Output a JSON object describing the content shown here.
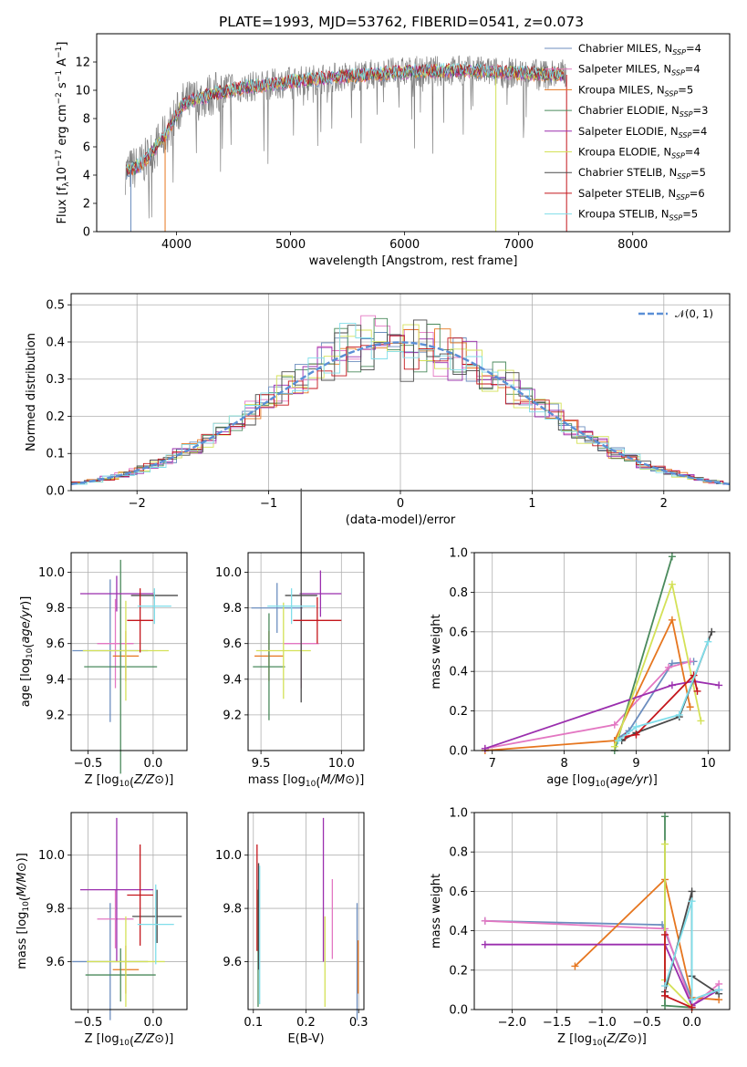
{
  "title": "PLATE=1993, MJD=53762, FIBERID=0541, z=0.073",
  "colors": {
    "chabrier_miles": "#6c8ebf",
    "salpeter_miles": "#e377c2",
    "kroupa_miles": "#e6761f",
    "chabrier_elodie": "#4a8a5c",
    "salpeter_elodie": "#9b2fae",
    "kroupa_elodie": "#d4e157",
    "chabrier_stelib": "#4a4a4a",
    "salpeter_stelib": "#c4161c",
    "kroupa_stelib": "#80deea",
    "data": "#808080",
    "normal": "#5b8fd6"
  },
  "chart_data": [
    {
      "id": "spectrum",
      "type": "line",
      "xlabel": "wavelength [Angstrom, rest frame]",
      "ylabel": "Flux [f_λ10^-17 erg cm^-2 s^-1 A^-1]",
      "xlim": [
        3300,
        8850
      ],
      "ylim": [
        0,
        14
      ],
      "xticks": [
        "4000",
        "5000",
        "6000",
        "7000",
        "8000"
      ],
      "yticks": [
        "0",
        "2",
        "4",
        "6",
        "8",
        "10",
        "12"
      ],
      "legend": [
        {
          "name": "Chabrier MILES, N_SSP=4",
          "base": "Chabrier MILES, N",
          "sub": "SSP",
          "tail": "=4"
        },
        {
          "name": "Salpeter MILES, N_SSP=4",
          "base": "Salpeter MILES, N",
          "sub": "SSP",
          "tail": "=4"
        },
        {
          "name": "Kroupa MILES, N_SSP=5",
          "base": "Kroupa MILES, N",
          "sub": "SSP",
          "tail": "=5"
        },
        {
          "name": "Chabrier ELODIE, N_SSP=3",
          "base": "Chabrier ELODIE, N",
          "sub": "SSP",
          "tail": "=3"
        },
        {
          "name": "Salpeter ELODIE, N_SSP=4",
          "base": "Salpeter ELODIE, N",
          "sub": "SSP",
          "tail": "=4"
        },
        {
          "name": "Kroupa ELODIE, N_SSP=4",
          "base": "Kroupa ELODIE, N",
          "sub": "SSP",
          "tail": "=4"
        },
        {
          "name": "Chabrier STELIB, N_SSP=5",
          "base": "Chabrier STELIB, N",
          "sub": "SSP",
          "tail": "=5"
        },
        {
          "name": "Salpeter STELIB, N_SSP=6",
          "base": "Salpeter STELIB, N",
          "sub": "SSP",
          "tail": "=6"
        },
        {
          "name": "Kroupa STELIB, N_SSP=5",
          "base": "Kroupa STELIB, N",
          "sub": "SSP",
          "tail": "=5"
        }
      ],
      "continuum": {
        "x": [
          3550,
          3700,
          3900,
          4050,
          4300,
          4600,
          5000,
          5500,
          6000,
          6500,
          7000,
          7400
        ],
        "y": [
          4.2,
          4.8,
          6.8,
          9.0,
          9.7,
          10.2,
          10.6,
          11.0,
          11.3,
          11.4,
          11.2,
          11.1
        ]
      }
    },
    {
      "id": "residuals",
      "type": "histogram",
      "xlabel": "(data-model)/error",
      "ylabel": "Normed distribution",
      "xlim": [
        -2.5,
        2.5
      ],
      "ylim": [
        0,
        0.53
      ],
      "xticks": [
        "−2",
        "−1",
        "0",
        "1",
        "2"
      ],
      "yticks": [
        "0.0",
        "0.1",
        "0.2",
        "0.3",
        "0.4",
        "0.5"
      ],
      "legend": "𝒩(0, 1)"
    },
    {
      "id": "age-vs-z",
      "type": "scatter",
      "xlabel": "Z [log10(Z/Z⊙)]",
      "ylabel": "age  [log10(age/yr)]",
      "xlim": [
        -0.63,
        0.26
      ],
      "ylim": [
        9.0,
        10.11
      ],
      "xticks": [
        "−0.5",
        "0.0"
      ],
      "yticks": [
        "9.2",
        "9.4",
        "9.6",
        "9.8",
        "10.0"
      ],
      "points": [
        {
          "model": "chabrier_miles",
          "x": -0.33,
          "y": 9.56,
          "xerr": 0.29,
          "yerr": 0.4
        },
        {
          "model": "salpeter_miles",
          "x": -0.29,
          "y": 9.6,
          "xerr": 0.14,
          "yerr": 0.25
        },
        {
          "model": "kroupa_miles",
          "x": -0.21,
          "y": 9.53,
          "xerr": 0.1,
          "yerr": 0.14
        },
        {
          "model": "chabrier_elodie",
          "x": -0.25,
          "y": 9.47,
          "xerr": 0.28,
          "yerr": 0.6
        },
        {
          "model": "salpeter_elodie",
          "x": -0.28,
          "y": 9.88,
          "xerr": 0.28,
          "yerr": 0.1
        },
        {
          "model": "kroupa_elodie",
          "x": -0.21,
          "y": 9.56,
          "xerr": 0.33,
          "yerr": 0.28
        },
        {
          "model": "chabrier_stelib",
          "x": 0.01,
          "y": 9.87,
          "xerr": 0.18,
          "yerr": 0.02
        },
        {
          "model": "salpeter_stelib",
          "x": -0.1,
          "y": 9.73,
          "xerr": 0.1,
          "yerr": 0.18
        },
        {
          "model": "kroupa_stelib",
          "x": 0.01,
          "y": 9.81,
          "xerr": 0.13,
          "yerr": 0.1
        }
      ]
    },
    {
      "id": "age-vs-mass",
      "type": "scatter",
      "xlabel": "mass [log10(M/M⊙)]",
      "ylabel": "",
      "xlim": [
        9.42,
        10.14
      ],
      "ylim": [
        9.0,
        10.11
      ],
      "xticks": [
        "9.5",
        "10.0"
      ],
      "yticks": [
        "9.2",
        "9.4",
        "9.6",
        "9.8",
        "10.0"
      ],
      "points": [
        {
          "model": "chabrier_miles",
          "x": 9.6,
          "y": 9.8,
          "xerr": 0.16,
          "yerr": 0.14
        },
        {
          "model": "salpeter_miles",
          "x": 9.75,
          "y": 9.6,
          "xerr": 0.11,
          "yerr": 0.25
        },
        {
          "model": "kroupa_miles",
          "x": 9.55,
          "y": 9.53,
          "xerr": 0.09,
          "yerr": 0.14
        },
        {
          "model": "chabrier_elodie",
          "x": 9.55,
          "y": 9.47,
          "xerr": 0.1,
          "yerr": 0.3
        },
        {
          "model": "salpeter_elodie",
          "x": 9.87,
          "y": 9.88,
          "xerr": 0.13,
          "yerr": 0.13
        },
        {
          "model": "kroupa_elodie",
          "x": 9.64,
          "y": 9.56,
          "xerr": 0.17,
          "yerr": 0.27
        },
        {
          "model": "chabrier_stelib",
          "x": 9.75,
          "y": 9.87,
          "xerr": 0.1,
          "yerr": 0.6
        },
        {
          "model": "salpeter_stelib",
          "x": 9.85,
          "y": 9.73,
          "xerr": 0.15,
          "yerr": 0.13
        },
        {
          "model": "kroupa_stelib",
          "x": 9.69,
          "y": 9.81,
          "xerr": 0.15,
          "yerr": 0.1
        }
      ]
    },
    {
      "id": "mass-weight-vs-age",
      "type": "line",
      "xlabel": "age  [log10(age/yr)]",
      "ylabel": "mass weight",
      "xlim": [
        6.75,
        10.3
      ],
      "ylim": [
        0,
        1
      ],
      "xticks": [
        "7",
        "8",
        "9",
        "10"
      ],
      "yticks": [
        "0.0",
        "0.2",
        "0.4",
        "0.6",
        "0.8",
        "1.0"
      ],
      "series": [
        {
          "model": "chabrier_miles",
          "x": [
            8.7,
            8.9,
            9.5,
            9.8
          ],
          "y": [
            0.05,
            0.1,
            0.44,
            0.45
          ]
        },
        {
          "model": "salpeter_miles",
          "x": [
            6.9,
            8.7,
            9.45,
            9.75
          ],
          "y": [
            0.01,
            0.13,
            0.42,
            0.45
          ]
        },
        {
          "model": "kroupa_miles",
          "x": [
            6.9,
            8.7,
            9.5,
            9.75
          ],
          "y": [
            0.0,
            0.05,
            0.66,
            0.22
          ]
        },
        {
          "model": "chabrier_elodie",
          "x": [
            8.7,
            9.5
          ],
          "y": [
            0.0,
            0.98
          ]
        },
        {
          "model": "salpeter_elodie",
          "x": [
            6.9,
            9.5,
            9.8,
            10.15
          ],
          "y": [
            0.01,
            0.33,
            0.35,
            0.33
          ]
        },
        {
          "model": "kroupa_elodie",
          "x": [
            8.7,
            9.5,
            9.9
          ],
          "y": [
            0.02,
            0.84,
            0.15
          ]
        },
        {
          "model": "chabrier_stelib",
          "x": [
            8.8,
            9.0,
            9.6,
            10.05
          ],
          "y": [
            0.05,
            0.09,
            0.17,
            0.6
          ]
        },
        {
          "model": "salpeter_stelib",
          "x": [
            8.85,
            9.0,
            9.8,
            9.85
          ],
          "y": [
            0.07,
            0.08,
            0.38,
            0.3
          ]
        },
        {
          "model": "kroupa_stelib",
          "x": [
            8.75,
            9.0,
            9.6,
            10.0
          ],
          "y": [
            0.05,
            0.12,
            0.18,
            0.55
          ]
        }
      ]
    },
    {
      "id": "mass-vs-z",
      "type": "scatter",
      "xlabel": "Z [log10(Z/Z⊙)]",
      "ylabel": "mass [log10(M/M⊙)]",
      "xlim": [
        -0.63,
        0.26
      ],
      "ylim": [
        9.42,
        10.16
      ],
      "xticks": [
        "−0.5",
        "0.0"
      ],
      "yticks": [
        "9.6",
        "9.8",
        "10.0"
      ],
      "points": [
        {
          "model": "chabrier_miles",
          "x": -0.33,
          "y": 9.6,
          "xerr": 0.29,
          "yerr": 0.22
        },
        {
          "model": "salpeter_miles",
          "x": -0.29,
          "y": 9.76,
          "xerr": 0.14,
          "yerr": 0.11
        },
        {
          "model": "kroupa_miles",
          "x": -0.21,
          "y": 9.57,
          "xerr": 0.1,
          "yerr": 0.09
        },
        {
          "model": "chabrier_elodie",
          "x": -0.25,
          "y": 9.55,
          "xerr": 0.27,
          "yerr": 0.1
        },
        {
          "model": "salpeter_elodie",
          "x": -0.28,
          "y": 9.87,
          "xerr": 0.28,
          "yerr": 0.27
        },
        {
          "model": "kroupa_elodie",
          "x": -0.21,
          "y": 9.6,
          "xerr": 0.3,
          "yerr": 0.17
        },
        {
          "model": "chabrier_stelib",
          "x": 0.03,
          "y": 9.77,
          "xerr": 0.19,
          "yerr": 0.1
        },
        {
          "model": "salpeter_stelib",
          "x": -0.1,
          "y": 9.85,
          "xerr": 0.1,
          "yerr": 0.19
        },
        {
          "model": "kroupa_stelib",
          "x": 0.02,
          "y": 9.74,
          "xerr": 0.14,
          "yerr": 0.15
        }
      ]
    },
    {
      "id": "mass-vs-ebv",
      "type": "scatter",
      "xlabel": "E(B-V)",
      "ylabel": "",
      "xlim": [
        0.09,
        0.31
      ],
      "ylim": [
        9.42,
        10.16
      ],
      "xticks": [
        "0.1",
        "0.2",
        "0.3"
      ],
      "yticks": [
        "9.6",
        "9.8",
        "10.0"
      ],
      "points": [
        {
          "model": "chabrier_miles",
          "x": 0.297,
          "y": 9.6,
          "yerr": 0.22
        },
        {
          "model": "salpeter_miles",
          "x": 0.25,
          "y": 9.76,
          "yerr": 0.15
        },
        {
          "model": "kroupa_miles",
          "x": 0.299,
          "y": 9.58,
          "yerr": 0.1
        },
        {
          "model": "chabrier_elodie",
          "x": 0.109,
          "y": 9.65,
          "yerr": 0.22
        },
        {
          "model": "salpeter_elodie",
          "x": 0.233,
          "y": 9.87,
          "yerr": 0.27
        },
        {
          "model": "kroupa_elodie",
          "x": 0.236,
          "y": 9.6,
          "yerr": 0.17
        },
        {
          "model": "chabrier_stelib",
          "x": 0.11,
          "y": 9.77,
          "yerr": 0.2
        },
        {
          "model": "salpeter_stelib",
          "x": 0.107,
          "y": 9.84,
          "yerr": 0.2
        },
        {
          "model": "kroupa_stelib",
          "x": 0.112,
          "y": 9.7,
          "yerr": 0.26
        }
      ]
    },
    {
      "id": "mass-weight-vs-z",
      "type": "line",
      "xlabel": "Z [log10(Z/Z⊙)]",
      "ylabel": "mass weight",
      "xlim": [
        -2.42,
        0.42
      ],
      "ylim": [
        0,
        1
      ],
      "xticks": [
        "−2.0",
        "−1.5",
        "−1.0",
        "−0.5",
        "0.0"
      ],
      "yticks": [
        "0.0",
        "0.2",
        "0.4",
        "0.6",
        "0.8",
        "1.0"
      ],
      "series": [
        {
          "model": "chabrier_miles",
          "x": [
            -2.3,
            -0.33,
            0.0,
            0.3
          ],
          "y": [
            0.45,
            0.43,
            0.05,
            0.1
          ]
        },
        {
          "model": "salpeter_miles",
          "x": [
            -2.3,
            -0.3,
            0.0,
            0.3
          ],
          "y": [
            0.45,
            0.41,
            0.02,
            0.13
          ]
        },
        {
          "model": "kroupa_miles",
          "x": [
            -1.3,
            -0.3,
            0.0,
            0.3
          ],
          "y": [
            0.22,
            0.66,
            0.06,
            0.05
          ]
        },
        {
          "model": "chabrier_elodie",
          "x": [
            -0.3,
            -0.3,
            0.0
          ],
          "y": [
            0.98,
            0.02,
            0.01
          ]
        },
        {
          "model": "salpeter_elodie",
          "x": [
            -2.3,
            -0.3,
            0.0,
            0.3
          ],
          "y": [
            0.33,
            0.33,
            0.02,
            0.1
          ]
        },
        {
          "model": "kroupa_elodie",
          "x": [
            -0.3,
            -0.3,
            0.0
          ],
          "y": [
            0.84,
            0.15,
            0.01
          ]
        },
        {
          "model": "chabrier_stelib",
          "x": [
            -0.3,
            0.0,
            0.0,
            0.3
          ],
          "y": [
            0.09,
            0.6,
            0.17,
            0.08
          ]
        },
        {
          "model": "salpeter_stelib",
          "x": [
            -0.3,
            -0.3,
            0.0
          ],
          "y": [
            0.38,
            0.07,
            0.01
          ]
        },
        {
          "model": "kroupa_stelib",
          "x": [
            -0.3,
            0.0,
            0.0,
            0.3
          ],
          "y": [
            0.12,
            0.55,
            0.05,
            0.1
          ]
        }
      ]
    }
  ]
}
